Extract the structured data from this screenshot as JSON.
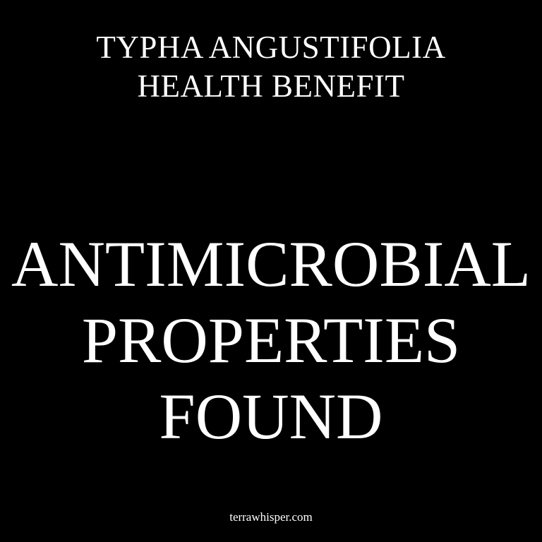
{
  "header": {
    "line1": "TYPHA ANGUSTIFOLIA",
    "line2": "HEALTH BENEFIT"
  },
  "headline": {
    "line1": "ANTIMICROBIAL",
    "line2": "PROPERTIES",
    "line3": "FOUND"
  },
  "footer": {
    "site": "terrawhisper.com"
  },
  "colors": {
    "background": "#000000",
    "text": "#ffffff"
  }
}
